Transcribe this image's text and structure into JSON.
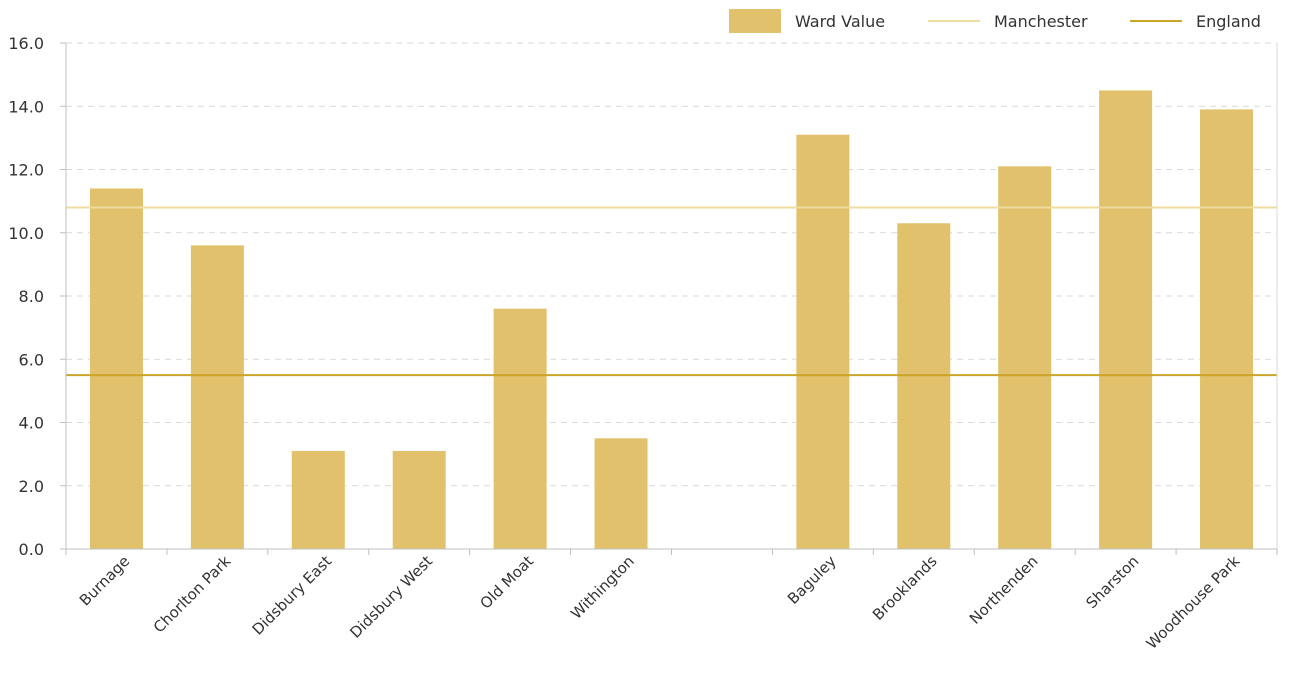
{
  "chart_data": {
    "type": "bar",
    "categories": [
      "Burnage",
      "Chorlton Park",
      "Didsbury East",
      "Didsbury West",
      "Old Moat",
      "Withington",
      "",
      "Baguley",
      "Brooklands",
      "Northenden",
      "Sharston",
      "Woodhouse Park"
    ],
    "series": [
      {
        "name": "Ward Value",
        "values": [
          11.4,
          9.6,
          3.1,
          3.1,
          7.6,
          3.5,
          null,
          13.1,
          10.3,
          12.1,
          14.5,
          13.9
        ]
      }
    ],
    "reference_lines": [
      {
        "name": "Manchester",
        "value": 10.8
      },
      {
        "name": "England",
        "value": 5.5
      }
    ],
    "title": "",
    "xlabel": "",
    "ylabel": "",
    "ylim": [
      0,
      16
    ],
    "yticks": [
      "0.0",
      "2.0",
      "4.0",
      "6.0",
      "8.0",
      "10.0",
      "12.0",
      "14.0",
      "16.0"
    ],
    "grid": true,
    "legend_position": "top-right",
    "colors": {
      "bar": "#E1C16B",
      "manchester": "#F0DC9E",
      "england": "#CBA52A",
      "grid": "#D9D9D9",
      "axis": "#BFBFBF"
    }
  }
}
